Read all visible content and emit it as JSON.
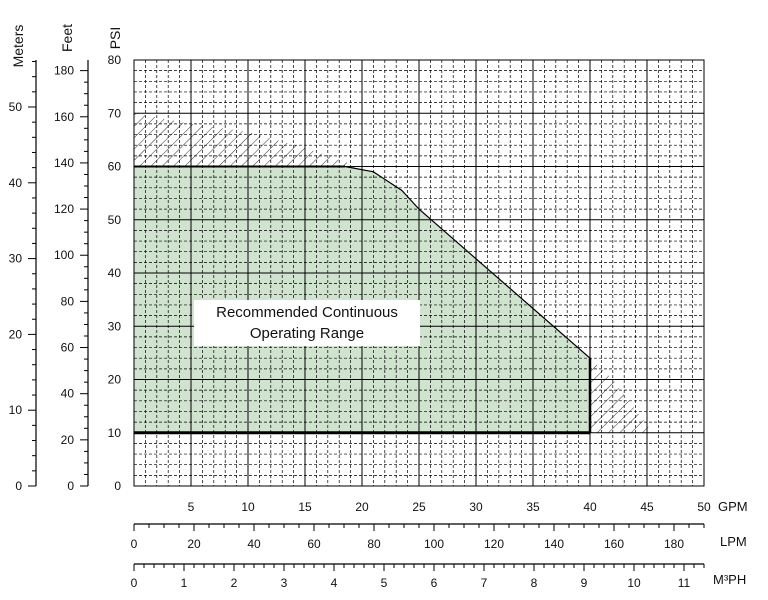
{
  "chart_data": {
    "type": "area",
    "x_unit": "GPM",
    "x_ticks": [
      5,
      10,
      15,
      20,
      25,
      30,
      35,
      40,
      45,
      50
    ],
    "xlim": [
      0,
      50
    ],
    "secondary_x_axes": [
      {
        "unit": "LPM",
        "ticks": [
          0,
          20,
          40,
          60,
          80,
          100,
          120,
          140,
          160,
          180
        ],
        "max": 190
      },
      {
        "unit": "M³PH",
        "ticks": [
          0,
          1,
          2,
          3,
          4,
          5,
          6,
          7,
          8,
          9,
          10,
          11
        ],
        "max": 11.4
      }
    ],
    "y_axes": [
      {
        "unit": "PSI",
        "ticks": [
          0,
          10,
          20,
          30,
          40,
          50,
          60,
          70,
          80
        ],
        "ylim": [
          0,
          80
        ]
      },
      {
        "unit": "Feet",
        "ticks": [
          0,
          20,
          40,
          60,
          80,
          100,
          120,
          140,
          160,
          180
        ],
        "max": 184.6
      },
      {
        "unit": "Meters",
        "ticks": [
          0,
          10,
          20,
          30,
          40,
          50
        ],
        "max": 56.2
      }
    ],
    "series": [
      {
        "name": "Recommended Continuous Operating Range",
        "fill": "#cfe3cf",
        "x": [
          0,
          18.5,
          21,
          23.5,
          25,
          40,
          40,
          0
        ],
        "y": [
          60,
          60,
          59,
          55.5,
          52,
          24,
          10,
          10
        ]
      },
      {
        "fill": "hatched",
        "x": [
          0,
          0,
          5,
          10,
          15,
          19,
          40,
          42,
          45.5,
          40
        ],
        "y": [
          60,
          70,
          68,
          66.5,
          63.5,
          60.5,
          24,
          20,
          10,
          10
        ]
      }
    ],
    "annotations": [
      "Recommended Continuous",
      "Operating Range"
    ],
    "grid": true
  },
  "colors": {
    "green_fill": "#cfe3cf",
    "grid": "#000000",
    "boundary": "#000000"
  }
}
